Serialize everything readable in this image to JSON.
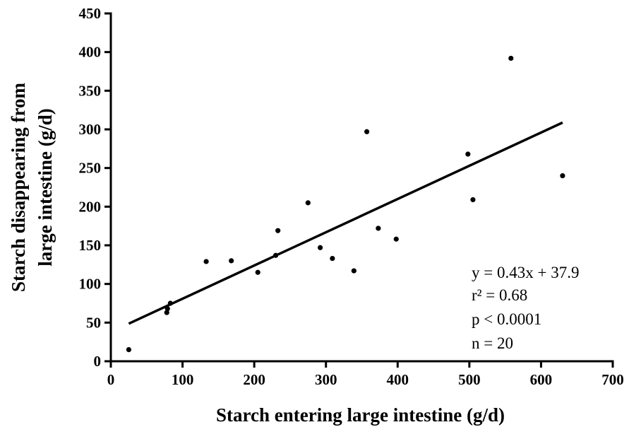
{
  "chart_data": {
    "type": "scatter",
    "title": "",
    "xlabel": "Starch entering large intestine (g/d)",
    "ylabel_lines": [
      "Starch disappearing from",
      "large intestine (g/d)"
    ],
    "xlim": [
      0,
      700
    ],
    "ylim": [
      0,
      450
    ],
    "x_ticks": [
      0,
      100,
      200,
      300,
      400,
      500,
      600,
      700
    ],
    "y_ticks": [
      0,
      50,
      100,
      150,
      200,
      250,
      300,
      350,
      400,
      450
    ],
    "grid": false,
    "points": [
      {
        "x": 25,
        "y": 15
      },
      {
        "x": 78,
        "y": 63
      },
      {
        "x": 79,
        "y": 68
      },
      {
        "x": 83,
        "y": 75
      },
      {
        "x": 133,
        "y": 129
      },
      {
        "x": 168,
        "y": 130
      },
      {
        "x": 205,
        "y": 115
      },
      {
        "x": 230,
        "y": 137
      },
      {
        "x": 233,
        "y": 169
      },
      {
        "x": 275,
        "y": 205
      },
      {
        "x": 292,
        "y": 147
      },
      {
        "x": 309,
        "y": 133
      },
      {
        "x": 339,
        "y": 117
      },
      {
        "x": 357,
        "y": 297
      },
      {
        "x": 373,
        "y": 172
      },
      {
        "x": 398,
        "y": 158
      },
      {
        "x": 498,
        "y": 268
      },
      {
        "x": 505,
        "y": 209
      },
      {
        "x": 558,
        "y": 392
      },
      {
        "x": 630,
        "y": 240
      }
    ],
    "fit_line": {
      "slope": 0.43,
      "intercept": 37.9,
      "x_range": [
        25,
        630
      ]
    },
    "annotation_lines": [
      "y = 0.43x + 37.9",
      "r² = 0.68",
      "p < 0.0001",
      "n = 20"
    ]
  }
}
